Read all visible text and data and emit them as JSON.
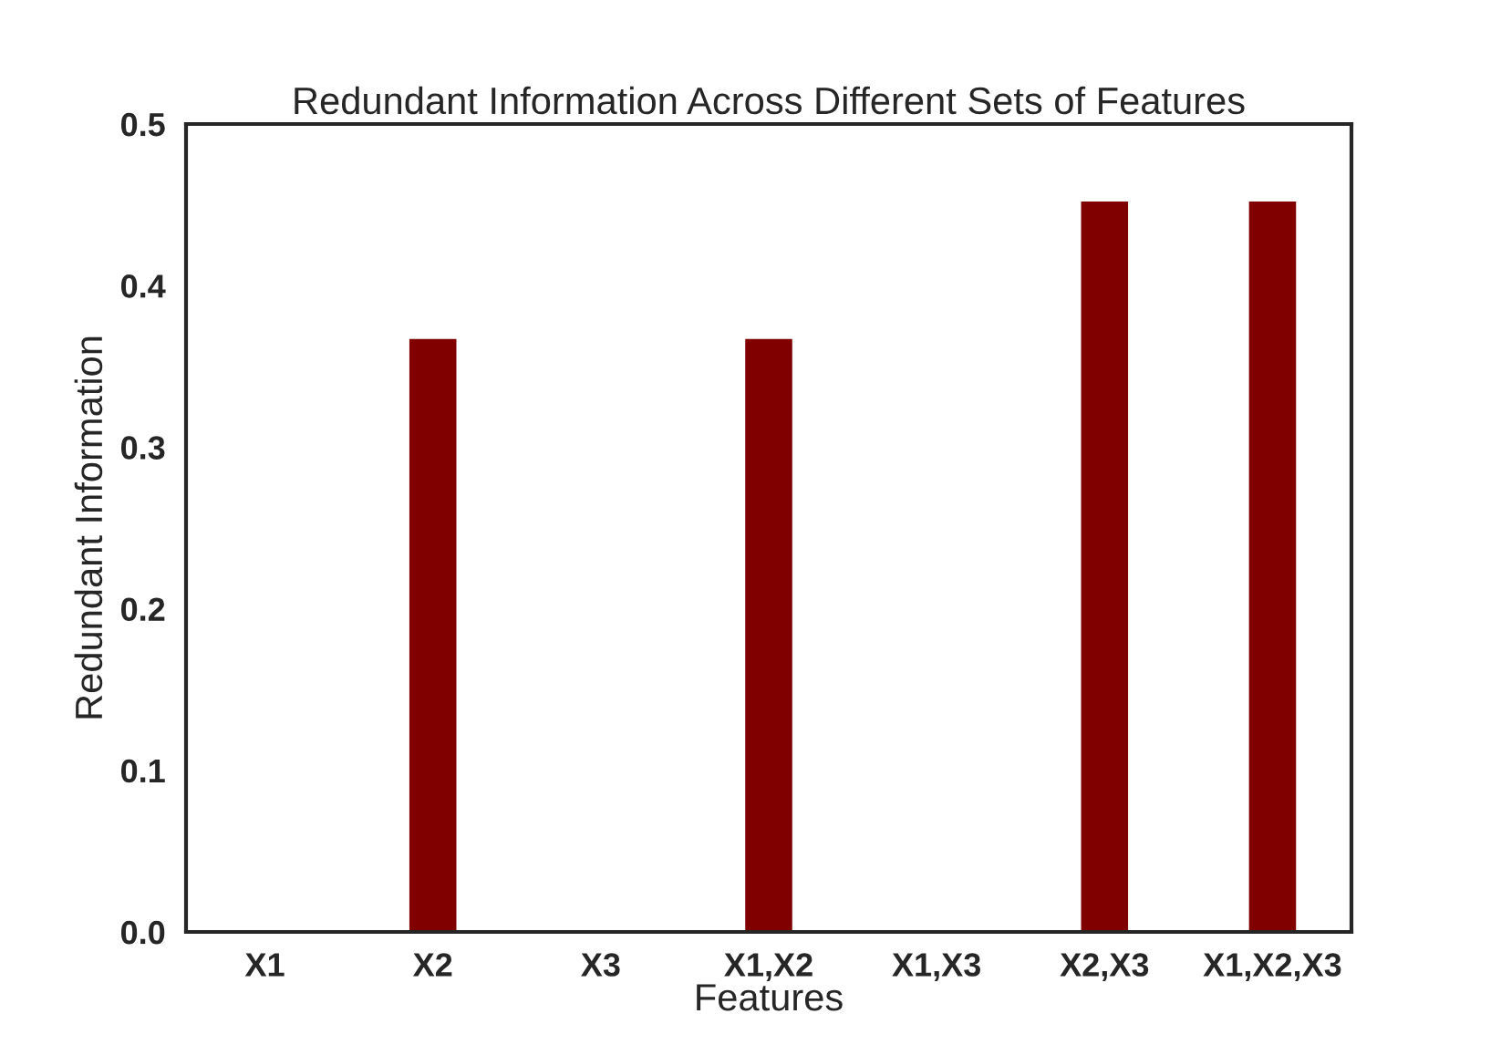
{
  "chart_data": {
    "type": "bar",
    "title": "Redundant Information Across Different Sets of Features",
    "xlabel": "Features",
    "ylabel": "Redundant Information",
    "categories": [
      "X1",
      "X2",
      "X3",
      "X1,X2",
      "X1,X3",
      "X2,X3",
      "X1,X2,X3"
    ],
    "values": [
      0,
      0.367,
      0,
      0.367,
      0,
      0.452,
      0.452
    ],
    "color": "#800000",
    "ylim": [
      0,
      0.5
    ],
    "yticks": [
      {
        "value": 0,
        "label": "0.0"
      },
      {
        "value": 0.1,
        "label": "0.1"
      },
      {
        "value": 0.2,
        "label": "0.2"
      },
      {
        "value": 0.3,
        "label": "0.3"
      },
      {
        "value": 0.4,
        "label": "0.4"
      },
      {
        "value": 0.5,
        "label": "0.5"
      }
    ],
    "grid": false,
    "legend": false
  }
}
